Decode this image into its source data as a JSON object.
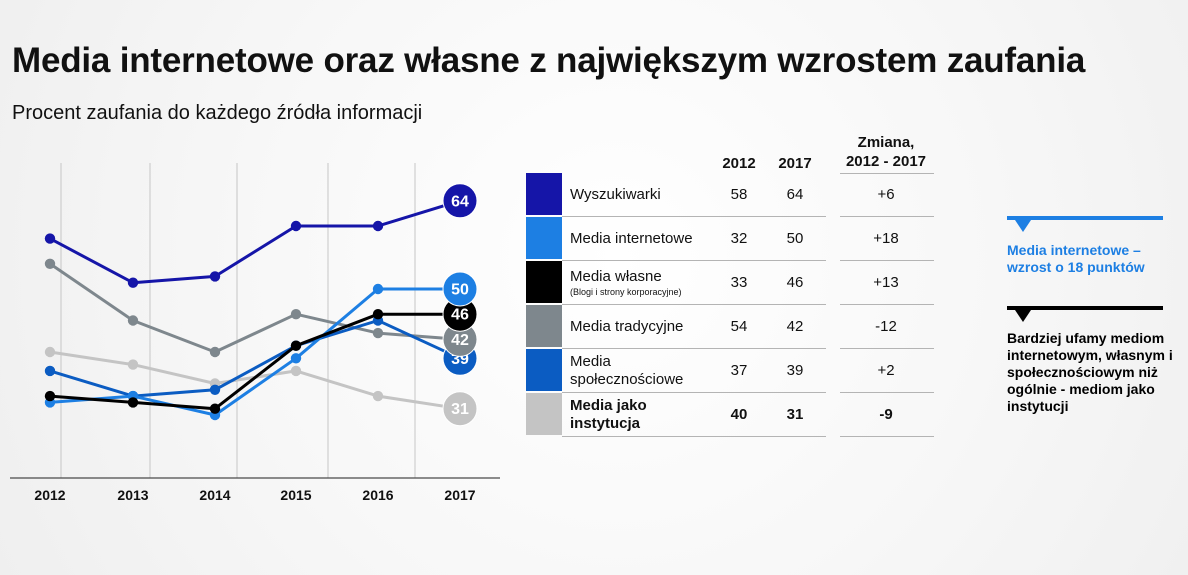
{
  "title": "Media internetowe oraz własne z największym wzrostem zaufania",
  "subtitle": "Procent zaufania do każdego źródła informacji",
  "chart_data": {
    "type": "line",
    "title": "Media internetowe oraz własne z największym wzrostem zaufania",
    "subtitle": "Procent zaufania do każdego źródła informacji",
    "categories": [
      "2012",
      "2013",
      "2014",
      "2015",
      "2016",
      "2017"
    ],
    "series": [
      {
        "name": "Wyszukiwarki",
        "color": "#1515a8",
        "values": [
          58,
          51,
          52,
          60,
          60,
          64
        ],
        "end_label": "64"
      },
      {
        "name": "Media internetowe",
        "color": "#1d7fe3",
        "values": [
          32,
          33,
          30,
          39,
          50,
          50
        ],
        "end_label": "50"
      },
      {
        "name": "Media własne",
        "color": "#000000",
        "values": [
          33,
          32,
          31,
          41,
          46,
          46
        ],
        "end_label": "46"
      },
      {
        "name": "Media tradycyjne",
        "color": "#7e878d",
        "values": [
          54,
          45,
          40,
          46,
          43,
          42
        ],
        "end_label": "42"
      },
      {
        "name": "Media społecznościowe",
        "color": "#0b5cc2",
        "values": [
          37,
          33,
          34,
          41,
          45,
          39
        ],
        "end_label": "39"
      },
      {
        "name": "Media jako instytucja",
        "color": "#c4c4c4",
        "values": [
          40,
          38,
          35,
          37,
          33,
          31
        ],
        "end_label": "31"
      }
    ],
    "xlabel": "",
    "ylabel": "",
    "grid": true,
    "ylim": [
      20,
      70
    ]
  },
  "table": {
    "headers": {
      "y2012": "2012",
      "y2017": "2017",
      "change_line1": "Zmiana,",
      "change_line2": "2012 - 2017"
    },
    "rows": [
      {
        "label": "Wyszukiwarki",
        "note": "",
        "v2012": "58",
        "v2017": "64",
        "change": "+6",
        "color": "#1515a8",
        "bold": false
      },
      {
        "label": "Media internetowe",
        "note": "",
        "v2012": "32",
        "v2017": "50",
        "change": "+18",
        "color": "#1d7fe3",
        "bold": false
      },
      {
        "label": "Media własne",
        "note": "(Blogi i strony korporacyjne)",
        "v2012": "33",
        "v2017": "46",
        "change": "+13",
        "color": "#000000",
        "bold": false
      },
      {
        "label": "Media tradycyjne",
        "note": "",
        "v2012": "54",
        "v2017": "42",
        "change": "-12",
        "color": "#7e878d",
        "bold": false
      },
      {
        "label": "Media społecznościowe",
        "note": "",
        "v2012": "37",
        "v2017": "39",
        "change": "+2",
        "color": "#0b5cc2",
        "bold": false
      },
      {
        "label": "Media jako instytucja",
        "note": "",
        "v2012": "40",
        "v2017": "31",
        "change": "-9",
        "color": "#c4c4c4",
        "bold": true
      }
    ]
  },
  "callouts": [
    {
      "text": "Media internetowe – wzrost o 18 punktów",
      "color": "#1d7fe3"
    },
    {
      "text": "Bardziej ufamy mediom internetowym, własnym i społecznościowym niż ogólnie - mediom jako instytucji",
      "color": "#000000"
    }
  ]
}
